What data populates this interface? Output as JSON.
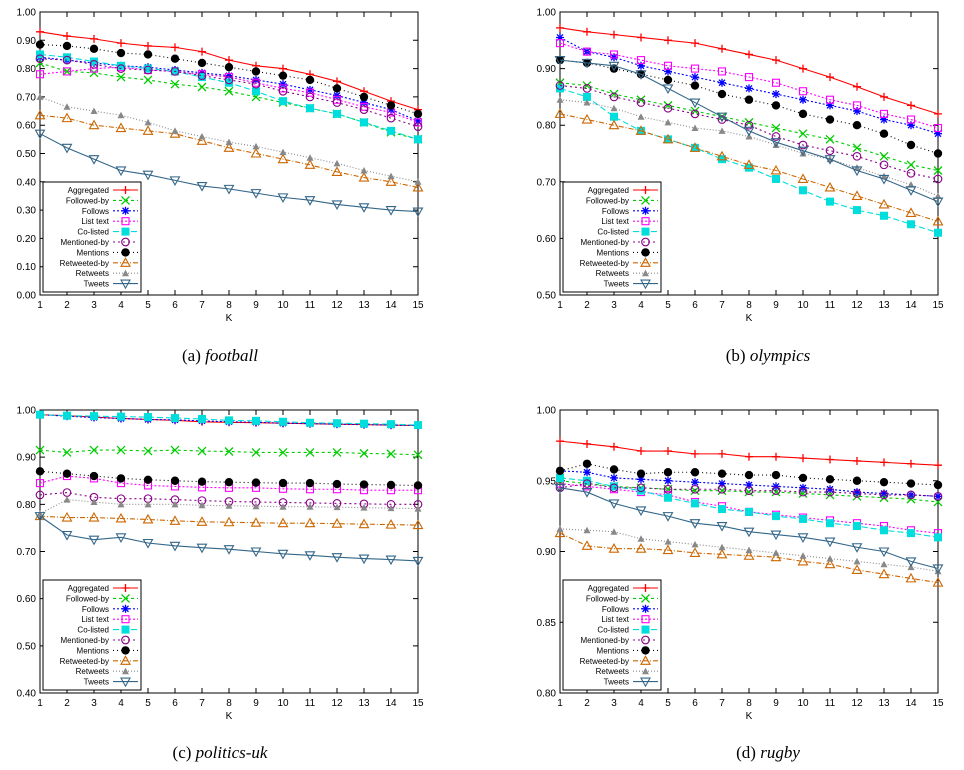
{
  "chart_data": [
    {
      "type": "line",
      "caption_prefix": "(a)",
      "caption_name": "football",
      "xlabel": "K",
      "ylabel": "",
      "x": [
        1,
        2,
        3,
        4,
        5,
        6,
        7,
        8,
        9,
        10,
        11,
        12,
        13,
        14,
        15
      ],
      "xlim": [
        1,
        15
      ],
      "ylim": [
        0.0,
        1.0
      ],
      "yticks": [
        0.0,
        0.1,
        0.2,
        0.3,
        0.4,
        0.5,
        0.6,
        0.7,
        0.8,
        0.9,
        1.0
      ],
      "ytick_labels": [
        "0.00",
        "0.10",
        "0.20",
        "0.30",
        "0.40",
        "0.50",
        "0.60",
        "0.70",
        "0.80",
        "0.90",
        "1.00"
      ],
      "legend_position": "bottom-left",
      "grid": false,
      "series": [
        {
          "name": "Aggregated",
          "color": "#ff0000",
          "values": [
            0.93,
            0.915,
            0.905,
            0.89,
            0.88,
            0.875,
            0.86,
            0.83,
            0.81,
            0.8,
            0.78,
            0.755,
            0.72,
            0.685,
            0.655
          ]
        },
        {
          "name": "Followed-by",
          "color": "#00cc00",
          "values": [
            0.82,
            0.79,
            0.785,
            0.77,
            0.76,
            0.745,
            0.735,
            0.72,
            0.7,
            0.68,
            0.66,
            0.64,
            0.61,
            0.575,
            0.55
          ]
        },
        {
          "name": "Follows",
          "color": "#0000ff",
          "values": [
            0.84,
            0.83,
            0.82,
            0.81,
            0.805,
            0.795,
            0.785,
            0.775,
            0.76,
            0.745,
            0.725,
            0.705,
            0.68,
            0.655,
            0.615
          ]
        },
        {
          "name": "List text",
          "color": "#ff00ff",
          "values": [
            0.78,
            0.79,
            0.8,
            0.805,
            0.795,
            0.79,
            0.78,
            0.77,
            0.75,
            0.73,
            0.715,
            0.69,
            0.665,
            0.645,
            0.61
          ]
        },
        {
          "name": "Co-listed",
          "color": "#00dddd",
          "values": [
            0.85,
            0.84,
            0.825,
            0.81,
            0.8,
            0.79,
            0.77,
            0.75,
            0.72,
            0.685,
            0.66,
            0.64,
            0.61,
            0.58,
            0.55
          ]
        },
        {
          "name": "Mentioned-by",
          "color": "#880088",
          "values": [
            0.835,
            0.83,
            0.815,
            0.8,
            0.795,
            0.79,
            0.775,
            0.76,
            0.745,
            0.72,
            0.7,
            0.68,
            0.655,
            0.625,
            0.595
          ]
        },
        {
          "name": "Mentions",
          "color": "#000000",
          "values": [
            0.885,
            0.88,
            0.87,
            0.855,
            0.85,
            0.835,
            0.82,
            0.805,
            0.79,
            0.775,
            0.76,
            0.73,
            0.7,
            0.67,
            0.64
          ]
        },
        {
          "name": "Retweeted-by",
          "color": "#cc6600",
          "values": [
            0.635,
            0.625,
            0.6,
            0.59,
            0.58,
            0.57,
            0.545,
            0.52,
            0.5,
            0.48,
            0.46,
            0.435,
            0.415,
            0.4,
            0.38
          ]
        },
        {
          "name": "Retweets",
          "color": "#888888",
          "values": [
            0.7,
            0.665,
            0.65,
            0.635,
            0.61,
            0.58,
            0.56,
            0.54,
            0.525,
            0.505,
            0.485,
            0.465,
            0.44,
            0.42,
            0.4
          ]
        },
        {
          "name": "Tweets",
          "color": "#336688",
          "values": [
            0.57,
            0.52,
            0.48,
            0.44,
            0.425,
            0.405,
            0.385,
            0.375,
            0.36,
            0.345,
            0.335,
            0.32,
            0.31,
            0.3,
            0.295
          ]
        }
      ]
    },
    {
      "type": "line",
      "caption_prefix": "(b)",
      "caption_name": "olympics",
      "xlabel": "K",
      "ylabel": "",
      "x": [
        1,
        2,
        3,
        4,
        5,
        6,
        7,
        8,
        9,
        10,
        11,
        12,
        13,
        14,
        15
      ],
      "xlim": [
        1,
        15
      ],
      "ylim": [
        0.5,
        1.0
      ],
      "yticks": [
        0.5,
        0.6,
        0.7,
        0.8,
        0.9,
        1.0
      ],
      "ytick_labels": [
        "0.50",
        "0.60",
        "0.70",
        "0.80",
        "0.90",
        "1.00"
      ],
      "legend_position": "bottom-left",
      "grid": false,
      "series": [
        {
          "name": "Aggregated",
          "color": "#ff0000",
          "values": [
            0.972,
            0.965,
            0.96,
            0.955,
            0.95,
            0.945,
            0.935,
            0.925,
            0.915,
            0.9,
            0.885,
            0.868,
            0.85,
            0.835,
            0.82
          ]
        },
        {
          "name": "Followed-by",
          "color": "#00cc00",
          "values": [
            0.875,
            0.87,
            0.855,
            0.845,
            0.835,
            0.825,
            0.815,
            0.805,
            0.795,
            0.785,
            0.775,
            0.76,
            0.745,
            0.73,
            0.72
          ]
        },
        {
          "name": "Follows",
          "color": "#0000ff",
          "values": [
            0.955,
            0.93,
            0.92,
            0.905,
            0.895,
            0.885,
            0.875,
            0.865,
            0.855,
            0.845,
            0.835,
            0.825,
            0.81,
            0.8,
            0.785
          ]
        },
        {
          "name": "List text",
          "color": "#ff00ff",
          "values": [
            0.945,
            0.93,
            0.925,
            0.915,
            0.905,
            0.9,
            0.895,
            0.885,
            0.875,
            0.86,
            0.845,
            0.835,
            0.82,
            0.81,
            0.795
          ]
        },
        {
          "name": "Co-listed",
          "color": "#00dddd",
          "values": [
            0.865,
            0.85,
            0.815,
            0.79,
            0.775,
            0.76,
            0.74,
            0.725,
            0.705,
            0.685,
            0.665,
            0.65,
            0.64,
            0.625,
            0.61
          ]
        },
        {
          "name": "Mentioned-by",
          "color": "#880088",
          "values": [
            0.87,
            0.865,
            0.85,
            0.84,
            0.83,
            0.82,
            0.81,
            0.8,
            0.78,
            0.765,
            0.755,
            0.745,
            0.73,
            0.715,
            0.705
          ]
        },
        {
          "name": "Mentions",
          "color": "#000000",
          "values": [
            0.915,
            0.91,
            0.9,
            0.89,
            0.88,
            0.87,
            0.855,
            0.845,
            0.835,
            0.82,
            0.81,
            0.8,
            0.785,
            0.765,
            0.75
          ]
        },
        {
          "name": "Retweeted-by",
          "color": "#cc6600",
          "values": [
            0.82,
            0.81,
            0.8,
            0.79,
            0.775,
            0.76,
            0.745,
            0.73,
            0.72,
            0.705,
            0.69,
            0.675,
            0.66,
            0.645,
            0.63
          ]
        },
        {
          "name": "Retweets",
          "color": "#888888",
          "values": [
            0.845,
            0.84,
            0.83,
            0.815,
            0.805,
            0.795,
            0.79,
            0.78,
            0.765,
            0.75,
            0.74,
            0.725,
            0.71,
            0.695,
            0.675
          ]
        },
        {
          "name": "Tweets",
          "color": "#336688",
          "values": [
            0.915,
            0.91,
            0.905,
            0.89,
            0.865,
            0.84,
            0.815,
            0.79,
            0.77,
            0.755,
            0.74,
            0.72,
            0.705,
            0.685,
            0.665
          ]
        }
      ]
    },
    {
      "type": "line",
      "caption_prefix": "(c)",
      "caption_name": "politics-uk",
      "xlabel": "K",
      "ylabel": "",
      "x": [
        1,
        2,
        3,
        4,
        5,
        6,
        7,
        8,
        9,
        10,
        11,
        12,
        13,
        14,
        15
      ],
      "xlim": [
        1,
        15
      ],
      "ylim": [
        0.4,
        1.0
      ],
      "yticks": [
        0.4,
        0.5,
        0.6,
        0.7,
        0.8,
        0.9,
        1.0
      ],
      "ytick_labels": [
        "0.40",
        "0.50",
        "0.60",
        "0.70",
        "0.80",
        "0.90",
        "1.00"
      ],
      "legend_position": "bottom-left",
      "grid": false,
      "series": [
        {
          "name": "Aggregated",
          "color": "#ff0000",
          "values": [
            0.99,
            0.988,
            0.985,
            0.982,
            0.98,
            0.978,
            0.975,
            0.974,
            0.973,
            0.972,
            0.971,
            0.97,
            0.969,
            0.968,
            0.967
          ]
        },
        {
          "name": "Followed-by",
          "color": "#00cc00",
          "values": [
            0.915,
            0.91,
            0.915,
            0.915,
            0.913,
            0.915,
            0.913,
            0.912,
            0.91,
            0.91,
            0.91,
            0.91,
            0.908,
            0.907,
            0.905
          ]
        },
        {
          "name": "Follows",
          "color": "#0000ff",
          "values": [
            0.99,
            0.987,
            0.984,
            0.982,
            0.98,
            0.979,
            0.977,
            0.975,
            0.974,
            0.972,
            0.971,
            0.97,
            0.969,
            0.968,
            0.967
          ]
        },
        {
          "name": "List text",
          "color": "#ff00ff",
          "values": [
            0.845,
            0.86,
            0.855,
            0.845,
            0.84,
            0.838,
            0.836,
            0.835,
            0.835,
            0.833,
            0.832,
            0.832,
            0.83,
            0.83,
            0.83
          ]
        },
        {
          "name": "Co-listed",
          "color": "#00dddd",
          "values": [
            0.99,
            0.988,
            0.987,
            0.986,
            0.985,
            0.983,
            0.981,
            0.978,
            0.977,
            0.975,
            0.973,
            0.972,
            0.971,
            0.97,
            0.968
          ]
        },
        {
          "name": "Mentioned-by",
          "color": "#880088",
          "values": [
            0.82,
            0.825,
            0.815,
            0.812,
            0.812,
            0.81,
            0.808,
            0.806,
            0.805,
            0.804,
            0.803,
            0.802,
            0.801,
            0.8,
            0.8
          ]
        },
        {
          "name": "Mentions",
          "color": "#000000",
          "values": [
            0.87,
            0.865,
            0.86,
            0.855,
            0.852,
            0.85,
            0.848,
            0.847,
            0.846,
            0.845,
            0.845,
            0.843,
            0.842,
            0.841,
            0.84
          ]
        },
        {
          "name": "Retweeted-by",
          "color": "#cc6600",
          "values": [
            0.775,
            0.772,
            0.772,
            0.77,
            0.768,
            0.765,
            0.763,
            0.762,
            0.761,
            0.76,
            0.76,
            0.759,
            0.758,
            0.757,
            0.756
          ]
        },
        {
          "name": "Retweets",
          "color": "#888888",
          "values": [
            0.78,
            0.81,
            0.805,
            0.8,
            0.8,
            0.8,
            0.798,
            0.797,
            0.796,
            0.795,
            0.795,
            0.794,
            0.793,
            0.792,
            0.791
          ]
        },
        {
          "name": "Tweets",
          "color": "#336688",
          "values": [
            0.775,
            0.735,
            0.725,
            0.73,
            0.718,
            0.712,
            0.708,
            0.705,
            0.7,
            0.695,
            0.692,
            0.688,
            0.685,
            0.683,
            0.68
          ]
        }
      ]
    },
    {
      "type": "line",
      "caption_prefix": "(d)",
      "caption_name": "rugby",
      "xlabel": "K",
      "ylabel": "",
      "x": [
        1,
        2,
        3,
        4,
        5,
        6,
        7,
        8,
        9,
        10,
        11,
        12,
        13,
        14,
        15
      ],
      "xlim": [
        1,
        15
      ],
      "ylim": [
        0.8,
        1.0
      ],
      "yticks": [
        0.8,
        0.85,
        0.9,
        0.95,
        1.0
      ],
      "ytick_labels": [
        "0.80",
        "0.85",
        "0.90",
        "0.95",
        "1.00"
      ],
      "legend_position": "bottom-left",
      "grid": false,
      "series": [
        {
          "name": "Aggregated",
          "color": "#ff0000",
          "values": [
            0.978,
            0.976,
            0.974,
            0.971,
            0.971,
            0.969,
            0.969,
            0.967,
            0.967,
            0.966,
            0.965,
            0.964,
            0.963,
            0.962,
            0.961
          ]
        },
        {
          "name": "Followed-by",
          "color": "#00cc00",
          "values": [
            0.95,
            0.948,
            0.946,
            0.945,
            0.944,
            0.943,
            0.943,
            0.942,
            0.942,
            0.941,
            0.94,
            0.939,
            0.938,
            0.937,
            0.935
          ]
        },
        {
          "name": "Follows",
          "color": "#0000ff",
          "values": [
            0.957,
            0.956,
            0.952,
            0.951,
            0.95,
            0.949,
            0.948,
            0.947,
            0.946,
            0.945,
            0.944,
            0.942,
            0.941,
            0.94,
            0.939
          ]
        },
        {
          "name": "List text",
          "color": "#ff00ff",
          "values": [
            0.948,
            0.946,
            0.944,
            0.942,
            0.94,
            0.935,
            0.932,
            0.928,
            0.926,
            0.924,
            0.922,
            0.92,
            0.918,
            0.915,
            0.913
          ]
        },
        {
          "name": "Co-listed",
          "color": "#00dddd",
          "values": [
            0.952,
            0.95,
            0.946,
            0.943,
            0.938,
            0.934,
            0.93,
            0.928,
            0.925,
            0.923,
            0.92,
            0.918,
            0.915,
            0.913,
            0.91
          ]
        },
        {
          "name": "Mentioned-by",
          "color": "#880088",
          "values": [
            0.945,
            0.948,
            0.945,
            0.945,
            0.944,
            0.944,
            0.944,
            0.943,
            0.943,
            0.942,
            0.942,
            0.941,
            0.94,
            0.94,
            0.939
          ]
        },
        {
          "name": "Mentions",
          "color": "#000000",
          "values": [
            0.957,
            0.962,
            0.958,
            0.955,
            0.956,
            0.956,
            0.955,
            0.954,
            0.954,
            0.952,
            0.951,
            0.95,
            0.949,
            0.948,
            0.947
          ]
        },
        {
          "name": "Retweeted-by",
          "color": "#cc6600",
          "values": [
            0.913,
            0.904,
            0.902,
            0.902,
            0.901,
            0.899,
            0.898,
            0.897,
            0.896,
            0.893,
            0.891,
            0.887,
            0.884,
            0.881,
            0.878
          ]
        },
        {
          "name": "Retweets",
          "color": "#888888",
          "values": [
            0.916,
            0.915,
            0.914,
            0.909,
            0.907,
            0.905,
            0.903,
            0.901,
            0.899,
            0.897,
            0.895,
            0.893,
            0.891,
            0.889,
            0.886
          ]
        },
        {
          "name": "Tweets",
          "color": "#336688",
          "values": [
            0.945,
            0.942,
            0.934,
            0.929,
            0.925,
            0.92,
            0.918,
            0.914,
            0.912,
            0.91,
            0.907,
            0.903,
            0.9,
            0.893,
            0.888
          ]
        }
      ]
    }
  ]
}
